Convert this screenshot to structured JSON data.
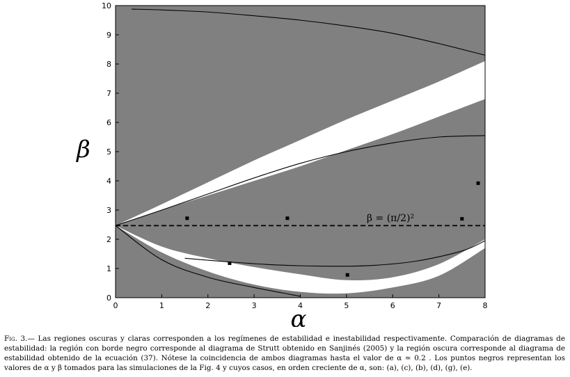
{
  "chart_data": {
    "type": "region-map",
    "xlabel": "α",
    "ylabel": "β",
    "xlim": [
      0,
      8
    ],
    "ylim": [
      0,
      10
    ],
    "xticks": [
      "0",
      "1",
      "2",
      "3",
      "4",
      "5",
      "6",
      "7",
      "8"
    ],
    "yticks": [
      "0",
      "1",
      "2",
      "3",
      "4",
      "5",
      "6",
      "7",
      "8",
      "9",
      "10"
    ],
    "colors": {
      "dark_region": "#808080",
      "light_region": "#ffffff",
      "boundary": "#000000"
    },
    "apex": [
      0,
      2.47
    ],
    "upper_light_lower_edge": [
      [
        0,
        2.47
      ],
      [
        1,
        3.0
      ],
      [
        2,
        3.5
      ],
      [
        3,
        4.0
      ],
      [
        4,
        4.5
      ],
      [
        5,
        5.05
      ],
      [
        6,
        5.6
      ],
      [
        7,
        6.2
      ],
      [
        8,
        6.8
      ]
    ],
    "upper_light_upper_edge": [
      [
        0,
        2.47
      ],
      [
        1,
        3.2
      ],
      [
        2,
        3.95
      ],
      [
        3,
        4.7
      ],
      [
        4,
        5.4
      ],
      [
        5,
        6.1
      ],
      [
        6,
        6.75
      ],
      [
        7,
        7.4
      ],
      [
        8,
        8.1
      ]
    ],
    "lower_light_upper_edge": [
      [
        0,
        2.47
      ],
      [
        1,
        1.75
      ],
      [
        2,
        1.35
      ],
      [
        3,
        1.05
      ],
      [
        4,
        0.8
      ],
      [
        5,
        0.6
      ],
      [
        6,
        0.7
      ],
      [
        7,
        1.15
      ],
      [
        8,
        2.0
      ]
    ],
    "lower_light_lower_edge": [
      [
        0,
        2.47
      ],
      [
        1,
        1.55
      ],
      [
        2,
        0.9
      ],
      [
        3,
        0.45
      ],
      [
        4,
        0.2
      ],
      [
        5,
        0.15
      ],
      [
        6,
        0.35
      ],
      [
        7,
        0.75
      ],
      [
        8,
        1.7
      ]
    ],
    "strutt_curves": [
      {
        "points": [
          [
            0,
            2.47
          ],
          [
            1,
            3.0
          ],
          [
            2,
            3.55
          ],
          [
            3,
            4.1
          ],
          [
            4,
            4.6
          ],
          [
            5,
            5.0
          ],
          [
            6,
            5.3
          ],
          [
            7,
            5.5
          ],
          [
            8,
            5.55
          ]
        ]
      },
      {
        "points": [
          [
            0,
            2.47
          ],
          [
            1,
            1.3
          ],
          [
            2,
            0.7
          ],
          [
            3,
            0.35
          ],
          [
            4,
            0.05
          ]
        ]
      },
      {
        "points": [
          [
            0.35,
            9.88
          ],
          [
            1,
            9.85
          ],
          [
            2,
            9.78
          ],
          [
            3,
            9.65
          ],
          [
            4,
            9.5
          ],
          [
            5,
            9.3
          ],
          [
            6,
            9.05
          ],
          [
            7,
            8.7
          ],
          [
            8,
            8.3
          ]
        ]
      },
      {
        "points": [
          [
            1.5,
            1.35
          ],
          [
            2.5,
            1.22
          ],
          [
            3.5,
            1.12
          ],
          [
            4.5,
            1.08
          ],
          [
            5.5,
            1.1
          ],
          [
            6.5,
            1.25
          ],
          [
            7.5,
            1.6
          ],
          [
            8,
            1.95
          ]
        ]
      }
    ],
    "reference_line": {
      "y": 2.467,
      "x": [
        0,
        8
      ],
      "style": "dashed",
      "label": "β = (π/2)²"
    },
    "points": [
      {
        "x": 1.55,
        "y": 2.72
      },
      {
        "x": 2.47,
        "y": 1.18
      },
      {
        "x": 3.72,
        "y": 2.72
      },
      {
        "x": 5.02,
        "y": 0.78
      },
      {
        "x": 7.5,
        "y": 2.7
      },
      {
        "x": 7.85,
        "y": 3.92
      }
    ]
  },
  "caption": {
    "tag": "Fig. 3.—",
    "text": " Las regiones oscuras y claras corresponden a los regímenes de estabilidad e inestabilidad respectivamente. Comparación de diagramas de estabilidad: la región con borde negro corresponde al diagrama de Strutt obtenido en Sanjinés (2005) y la región oscura corresponde al diagrama de estabilidad obtenido de la ecuación (37). Nótese la coincidencia de ambos diagramas hasta el valor de α ≃ 0.2 . Los puntos negros representan los valores de α y β tomados para las simulaciones de la Fig. 4 y cuyos casos, en orden creciente de α, son: (a), (c), (b), (d), (g), (e)."
  }
}
